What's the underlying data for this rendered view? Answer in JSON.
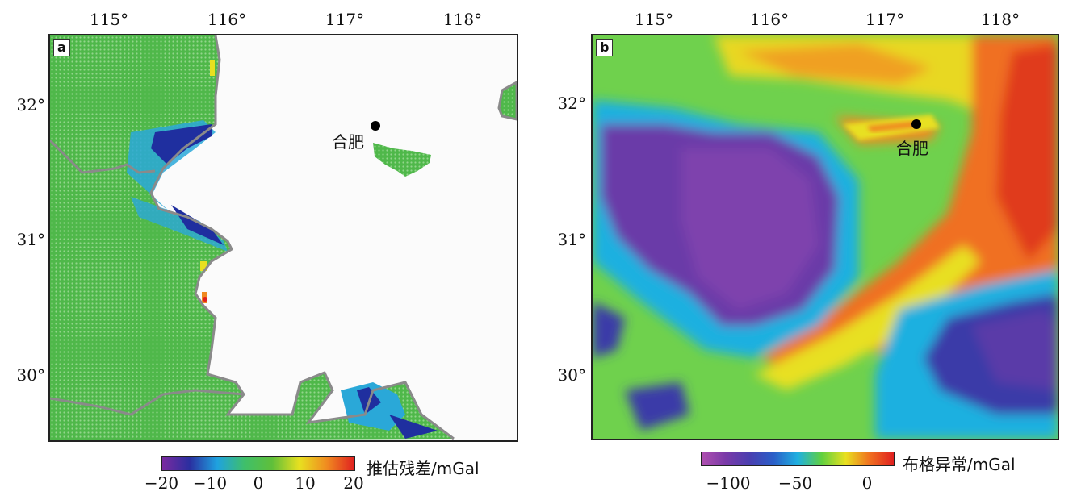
{
  "panel_a": {
    "label": "a",
    "x_ticks": [
      "115°",
      "116°",
      "117°",
      "118°"
    ],
    "y_ticks": [
      "32°",
      "31°",
      "30°"
    ],
    "city": "合肥",
    "colorbar": {
      "title": "推估残差/mGal",
      "ticks": [
        "−20",
        "−10",
        "0",
        "10",
        "20"
      ],
      "range": [
        -20,
        20
      ],
      "colors": [
        "#7a2aa0",
        "#2a2fa0",
        "#1fa2e0",
        "#3fbf6a",
        "#5fbf3a",
        "#e8e020",
        "#f08a20",
        "#e02020"
      ]
    }
  },
  "panel_b": {
    "label": "b",
    "x_ticks": [
      "115°",
      "116°",
      "117°",
      "118°"
    ],
    "y_ticks": [
      "32°",
      "31°",
      "30°"
    ],
    "city": "合肥",
    "colorbar": {
      "title": "布格异常/mGal",
      "ticks": [
        "−100",
        "−50",
        "0"
      ],
      "colors": [
        "#b050b0",
        "#7a3aa8",
        "#4a3fb0",
        "#2a5fc8",
        "#1fb0e0",
        "#60d040",
        "#e8e020",
        "#f07020",
        "#e02020"
      ]
    }
  },
  "colors": {
    "border_gray": "#8a8a8a",
    "residual_green": "#4fb84a",
    "residual_blue": "#1f2f9f",
    "residual_cyan": "#2aa8d8"
  }
}
